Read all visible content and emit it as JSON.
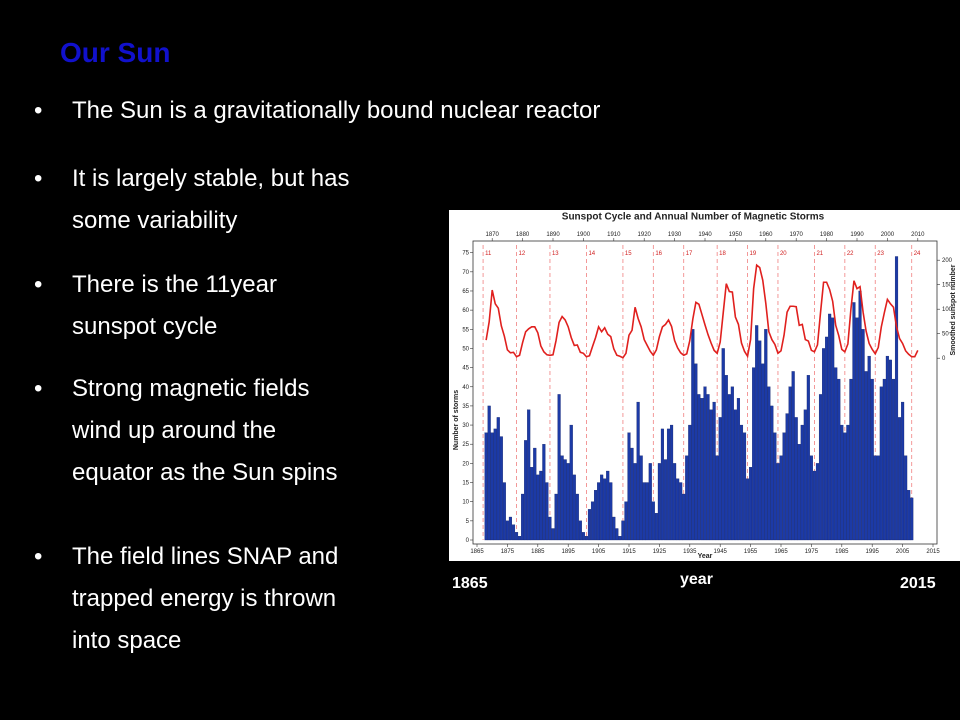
{
  "slide": {
    "title": "Our Sun",
    "bullets": [
      [
        "The Sun is a gravitationally bound nuclear reactor"
      ],
      [
        "It is largely stable, but has",
        "some variability"
      ],
      [
        "There is the 11year",
        "sunspot cycle"
      ],
      [
        "Strong magnetic fields",
        "wind up around the",
        "equator as the Sun spins"
      ],
      [
        "The field lines SNAP and",
        "trapped energy is thrown",
        "into space"
      ]
    ],
    "notes": {
      "left": "1865",
      "center": "year",
      "right": "2015"
    }
  },
  "chart_data": {
    "type": "bar",
    "title": "Sunspot Cycle and Annual Number of Magnetic Storms",
    "xlabel": "Year",
    "ylabel": "Number of storms",
    "y2label": "Smoothed sunspot number",
    "x": [
      1868,
      1869,
      1870,
      1871,
      1872,
      1873,
      1874,
      1875,
      1876,
      1877,
      1878,
      1879,
      1880,
      1881,
      1882,
      1883,
      1884,
      1885,
      1886,
      1887,
      1888,
      1889,
      1890,
      1891,
      1892,
      1893,
      1894,
      1895,
      1896,
      1897,
      1898,
      1899,
      1900,
      1901,
      1902,
      1903,
      1904,
      1905,
      1906,
      1907,
      1908,
      1909,
      1910,
      1911,
      1912,
      1913,
      1914,
      1915,
      1916,
      1917,
      1918,
      1919,
      1920,
      1921,
      1922,
      1923,
      1924,
      1925,
      1926,
      1927,
      1928,
      1929,
      1930,
      1931,
      1932,
      1933,
      1934,
      1935,
      1936,
      1937,
      1938,
      1939,
      1940,
      1941,
      1942,
      1943,
      1944,
      1945,
      1946,
      1947,
      1948,
      1949,
      1950,
      1951,
      1952,
      1953,
      1954,
      1955,
      1956,
      1957,
      1958,
      1959,
      1960,
      1961,
      1962,
      1963,
      1964,
      1965,
      1966,
      1967,
      1968,
      1969,
      1970,
      1971,
      1972,
      1973,
      1974,
      1975,
      1976,
      1977,
      1978,
      1979,
      1980,
      1981,
      1982,
      1983,
      1984,
      1985,
      1986,
      1987,
      1988,
      1989,
      1990,
      1991,
      1992,
      1993,
      1994,
      1995,
      1996,
      1997,
      1998,
      1999,
      2000,
      2001,
      2002,
      2003,
      2004,
      2005,
      2006,
      2007,
      2008,
      2009,
      2010
    ],
    "series": [
      {
        "type": "bar",
        "color": "#1c3aa6",
        "values": [
          28,
          35,
          28,
          29,
          32,
          27,
          15,
          5,
          6,
          4,
          2,
          1,
          12,
          26,
          34,
          19,
          24,
          17,
          18,
          25,
          15,
          6,
          3,
          12,
          38,
          22,
          21,
          20,
          30,
          17,
          12,
          5,
          2,
          1,
          8,
          10,
          13,
          15,
          17,
          16,
          18,
          15,
          6,
          3,
          1,
          5,
          10,
          28,
          24,
          20,
          36,
          22,
          15,
          15,
          20,
          10,
          7,
          20,
          29,
          21,
          29,
          30,
          20,
          16,
          15,
          12,
          22,
          30,
          55,
          46,
          38,
          37,
          40,
          38,
          34,
          36,
          22,
          32,
          50,
          43,
          38,
          40,
          34,
          37,
          30,
          28,
          16,
          19,
          45,
          56,
          52,
          46,
          55,
          40,
          35,
          28,
          20,
          22,
          28,
          33,
          40,
          44,
          32,
          25,
          30,
          34,
          43,
          22,
          18,
          20,
          38,
          50,
          53,
          59,
          58,
          45,
          42,
          30,
          28,
          30,
          42,
          62,
          58,
          65,
          55,
          44,
          48,
          42,
          22,
          22,
          40,
          42,
          48,
          47,
          42,
          74,
          32,
          36,
          22,
          13,
          11,
          null,
          null
        ]
      },
      {
        "type": "line",
        "axis": "y2",
        "color": "#e0201e",
        "values": [
          37,
          74,
          139,
          111,
          102,
          66,
          45,
          17,
          11,
          12,
          3,
          6,
          32,
          54,
          60,
          64,
          64,
          52,
          25,
          13,
          7,
          6,
          7,
          36,
          73,
          85,
          78,
          64,
          42,
          26,
          27,
          12,
          10,
          3,
          5,
          24,
          42,
          64,
          54,
          62,
          49,
          44,
          19,
          6,
          4,
          1,
          10,
          47,
          57,
          104,
          81,
          64,
          38,
          26,
          14,
          6,
          17,
          44,
          64,
          69,
          78,
          65,
          36,
          21,
          11,
          6,
          9,
          36,
          80,
          114,
          110,
          89,
          68,
          48,
          31,
          16,
          10,
          33,
          93,
          152,
          136,
          135,
          84,
          69,
          31,
          14,
          4,
          38,
          142,
          190,
          185,
          159,
          112,
          54,
          38,
          28,
          10,
          15,
          47,
          94,
          106,
          106,
          105,
          67,
          69,
          38,
          35,
          16,
          13,
          27,
          93,
          155,
          155,
          140,
          116,
          67,
          46,
          18,
          13,
          29,
          100,
          158,
          142,
          146,
          94,
          55,
          30,
          18,
          9,
          22,
          64,
          93,
          120,
          111,
          104,
          64,
          40,
          30,
          15,
          8,
          3,
          3,
          16
        ]
      }
    ],
    "xlim": [
      1865,
      2015
    ],
    "xticks": [
      1865,
      1875,
      1885,
      1895,
      1905,
      1915,
      1925,
      1935,
      1945,
      1955,
      1965,
      1975,
      1985,
      1995,
      2005,
      2015
    ],
    "x2ticks": [
      1870,
      1880,
      1890,
      1900,
      1910,
      1920,
      1930,
      1940,
      1950,
      1960,
      1970,
      1980,
      1990,
      2000,
      2010
    ],
    "ylim": [
      0,
      77
    ],
    "yticks": [
      0,
      5,
      10,
      15,
      20,
      25,
      30,
      35,
      40,
      45,
      50,
      55,
      60,
      65,
      70,
      75
    ],
    "y2lim": [
      -371,
      231
    ],
    "y2ticks": [
      0,
      50,
      100,
      150,
      200
    ],
    "cycles": [
      {
        "number": 11,
        "year": 1867
      },
      {
        "number": 12,
        "year": 1878
      },
      {
        "number": 13,
        "year": 1889
      },
      {
        "number": 14,
        "year": 1901
      },
      {
        "number": 15,
        "year": 1913
      },
      {
        "number": 16,
        "year": 1923
      },
      {
        "number": 17,
        "year": 1933
      },
      {
        "number": 18,
        "year": 1944
      },
      {
        "number": 19,
        "year": 1954
      },
      {
        "number": 20,
        "year": 1964
      },
      {
        "number": 21,
        "year": 1976
      },
      {
        "number": 22,
        "year": 1986
      },
      {
        "number": 23,
        "year": 1996
      },
      {
        "number": 24,
        "year": 2008
      }
    ]
  }
}
